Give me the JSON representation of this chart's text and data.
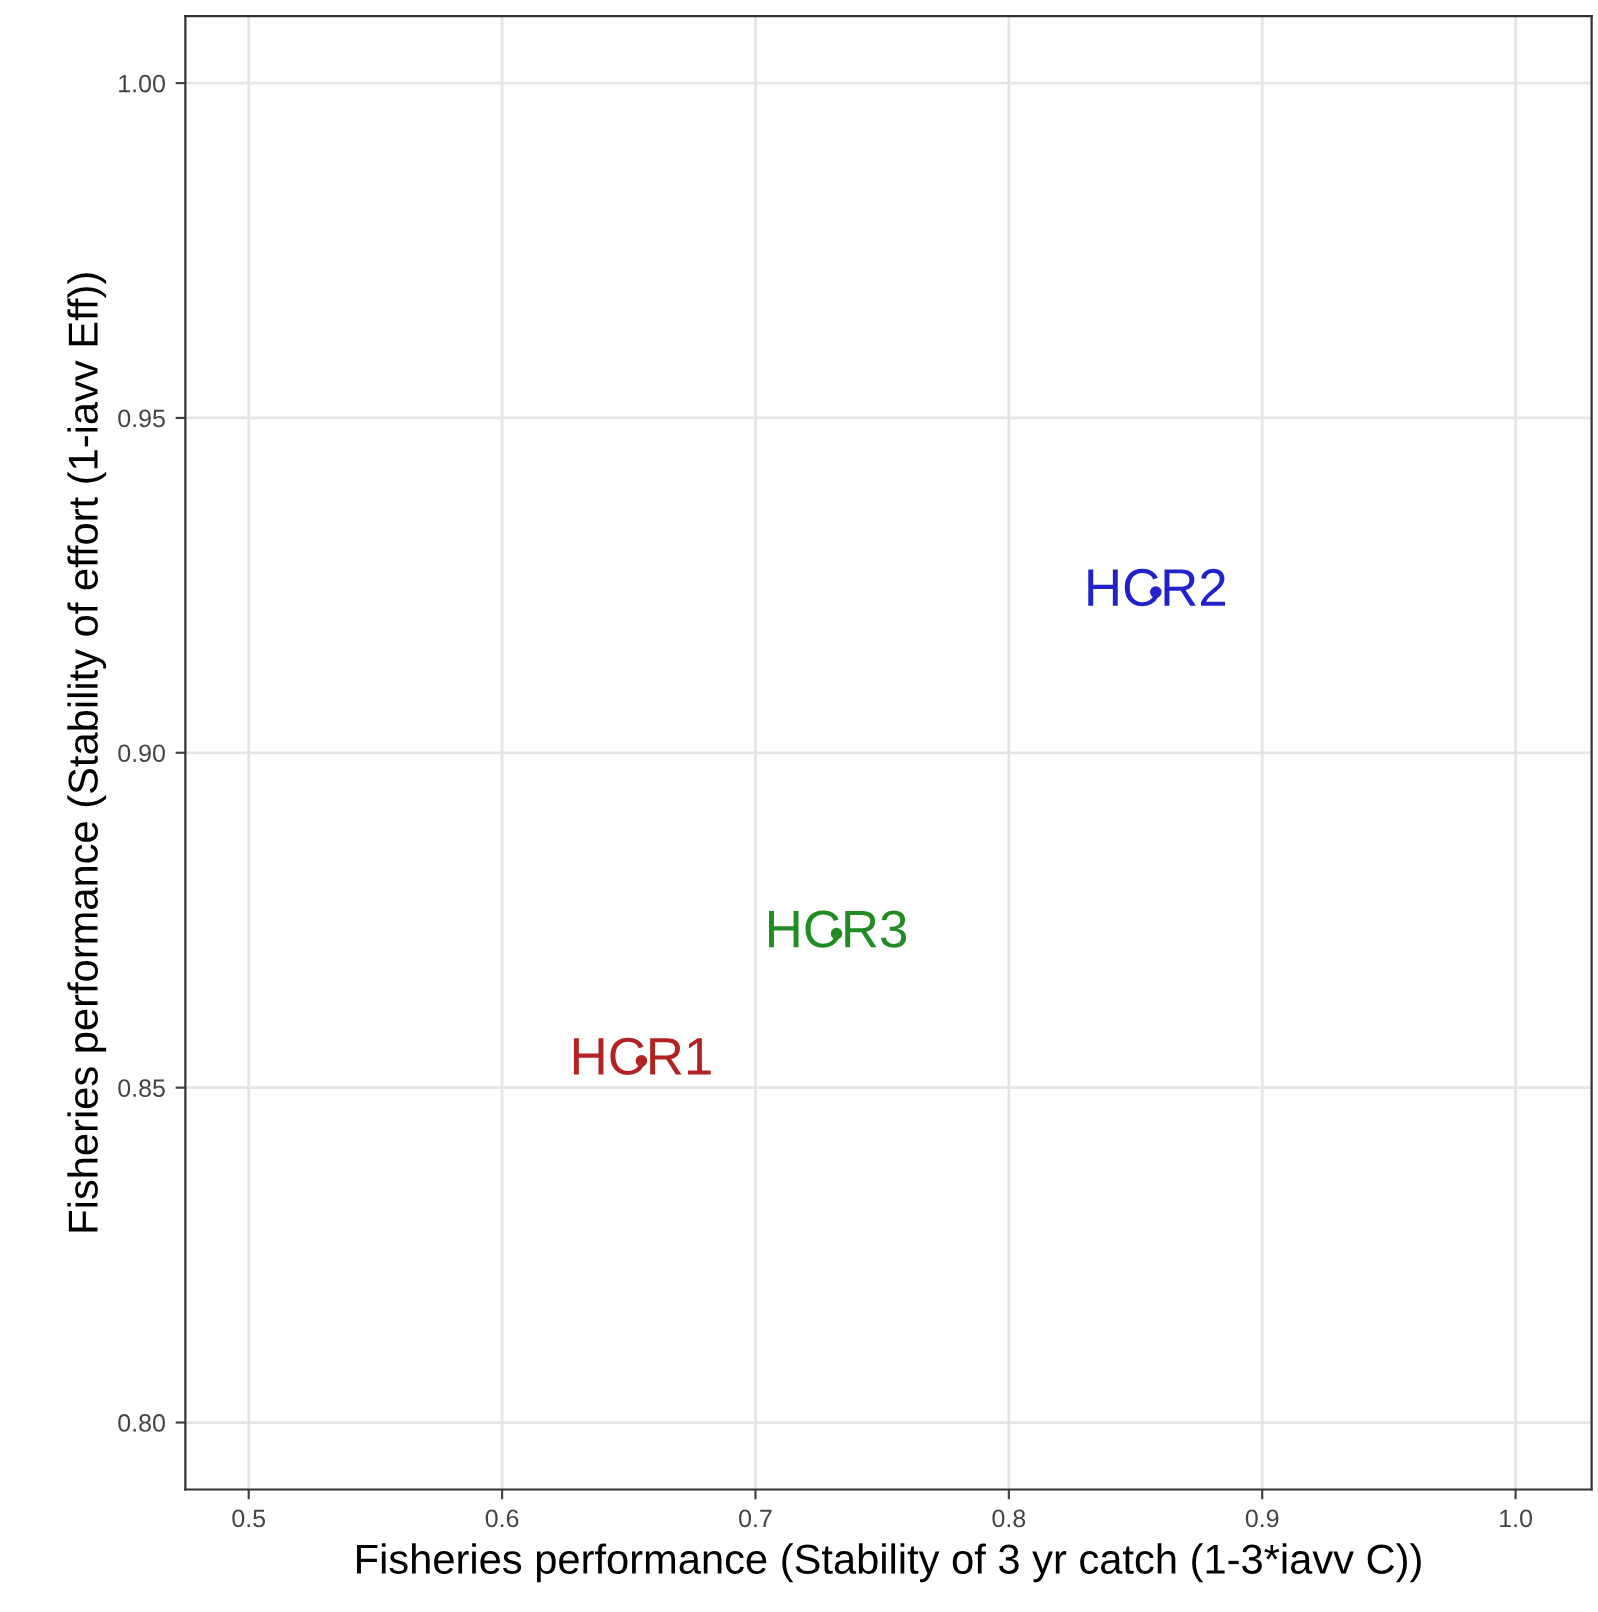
{
  "chart_data": {
    "type": "scatter",
    "xlabel": "Fisheries performance (Stability of 3 yr catch (1-3*iavv C))",
    "ylabel": "Fisheries performance (Stability of effort (1-iavv Eff))",
    "series": [
      {
        "name": "HCR1",
        "color": "#b22222",
        "x": [
          0.655
        ],
        "values": [
          0.854
        ]
      },
      {
        "name": "HCR3",
        "color": "#228b22",
        "x": [
          0.732
        ],
        "values": [
          0.873
        ]
      },
      {
        "name": "HCR2",
        "color": "#2222cc",
        "x": [
          0.858
        ],
        "values": [
          0.924
        ]
      }
    ],
    "xlim": [
      0.475,
      1.03
    ],
    "ylim": [
      0.79,
      1.01
    ],
    "xticks": [
      {
        "value": 0.5,
        "label": "0.5"
      },
      {
        "value": 0.6,
        "label": "0.6"
      },
      {
        "value": 0.7,
        "label": "0.7"
      },
      {
        "value": 0.8,
        "label": "0.8"
      },
      {
        "value": 0.9,
        "label": "0.9"
      },
      {
        "value": 1.0,
        "label": "1.0"
      }
    ],
    "yticks": [
      {
        "value": 0.8,
        "label": "0.80"
      },
      {
        "value": 0.85,
        "label": "0.85"
      },
      {
        "value": 0.9,
        "label": "0.90"
      },
      {
        "value": 0.95,
        "label": "0.95"
      },
      {
        "value": 1.0,
        "label": "1.00"
      }
    ],
    "grid": true,
    "marker": "circle",
    "legend": false
  }
}
